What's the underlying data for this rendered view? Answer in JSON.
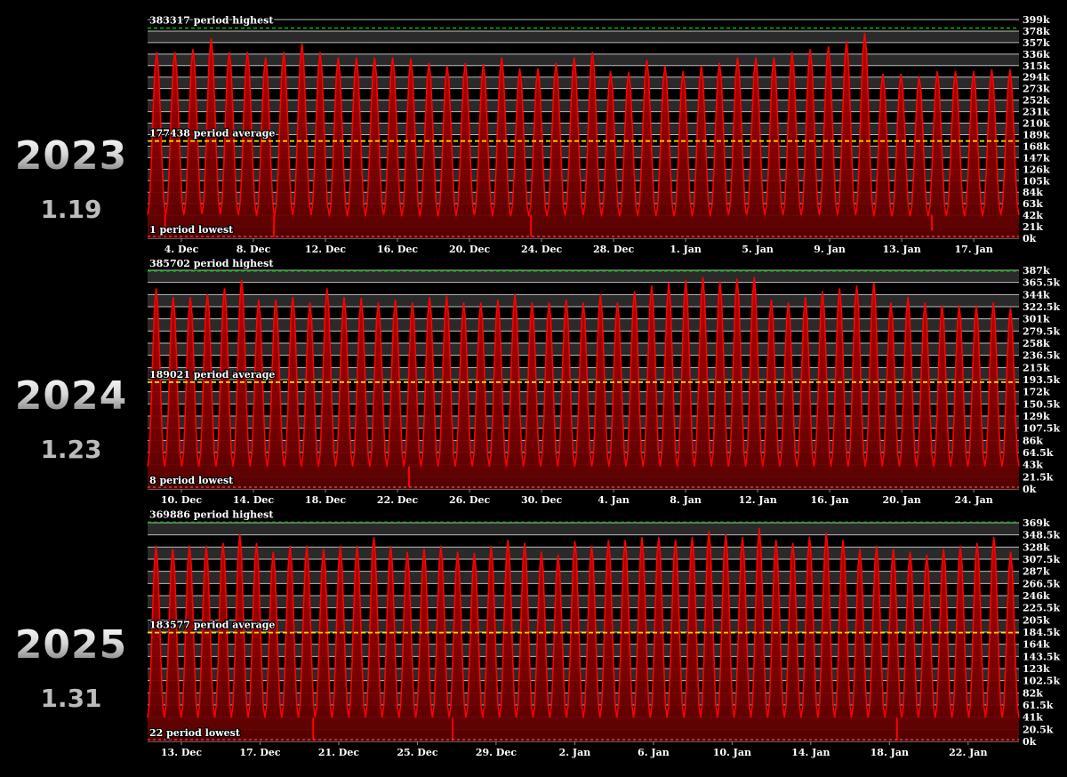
{
  "colors": {
    "background": "#000000",
    "series": "#ff0000",
    "area": "#8a0000",
    "highest_line": "#00c000",
    "average_line": "#ffe000",
    "lowest_line": "#ff6666"
  },
  "panels": [
    {
      "year": "2023",
      "version": "1.19"
    },
    {
      "year": "2024",
      "version": "1.23"
    },
    {
      "year": "2025",
      "version": "1.31"
    }
  ],
  "chart_data": [
    {
      "type": "area",
      "ylim": [
        0,
        399000
      ],
      "yticks": [
        "0k",
        "21k",
        "42k",
        "63k",
        "84k",
        "105k",
        "126k",
        "147k",
        "168k",
        "189k",
        "210k",
        "231k",
        "252k",
        "273k",
        "294k",
        "315k",
        "336k",
        "357k",
        "378k",
        "399k"
      ],
      "xticks": [
        "4. Dec",
        "8. Dec",
        "12. Dec",
        "16. Dec",
        "20. Dec",
        "24. Dec",
        "28. Dec",
        "1. Jan",
        "5. Jan",
        "9. Jan",
        "13. Jan",
        "17. Jan"
      ],
      "annotations": {
        "highest": "383317 period highest",
        "average": "177438 period average",
        "lowest": "1 period lowest"
      },
      "reference": {
        "highest": 383317,
        "average": 177438,
        "lowest": 1
      },
      "peaks": [
        340000,
        340000,
        345000,
        365000,
        340000,
        340000,
        330000,
        340000,
        355000,
        340000,
        330000,
        330000,
        330000,
        330000,
        328000,
        320000,
        315000,
        320000,
        318000,
        330000,
        310000,
        310000,
        320000,
        330000,
        340000,
        305000,
        303000,
        325000,
        315000,
        305000,
        315000,
        320000,
        330000,
        330000,
        330000,
        340000,
        345000,
        350000,
        360000,
        375000,
        300000,
        300000,
        295000,
        305000,
        305000,
        305000,
        308000,
        308000
      ],
      "troughs": [
        43000,
        42000,
        44000,
        45000,
        43000,
        42000,
        40000,
        42000,
        43000,
        42000,
        40000,
        40000,
        42000,
        42000,
        40000,
        40000,
        41000,
        42000,
        42000,
        40000,
        40000,
        40000,
        41000,
        42000,
        42000,
        40000,
        40000,
        42000,
        40000,
        40000,
        40000,
        42000,
        42000,
        42000,
        42000,
        42000,
        42000,
        42000,
        42000,
        42000,
        40000,
        40000,
        40000,
        40000,
        40000,
        40000,
        42000,
        42000
      ],
      "dips": [
        [
          0.02,
          18000
        ],
        [
          0.145,
          2000
        ],
        [
          0.44,
          3000
        ],
        [
          0.9,
          14000
        ]
      ]
    },
    {
      "type": "area",
      "ylim": [
        0,
        387000
      ],
      "yticks": [
        "0k",
        "21.5k",
        "43k",
        "64.5k",
        "86k",
        "107.5k",
        "129k",
        "150.5k",
        "172k",
        "193.5k",
        "215k",
        "236.5k",
        "258k",
        "279.5k",
        "301k",
        "322.5k",
        "344k",
        "365.5k",
        "387k"
      ],
      "xticks": [
        "10. Dec",
        "14. Dec",
        "18. Dec",
        "22. Dec",
        "26. Dec",
        "30. Dec",
        "4. Jan",
        "8. Jan",
        "12. Jan",
        "16. Jan",
        "20. Jan",
        "24. Jan"
      ],
      "annotations": {
        "highest": "385702 period highest",
        "average": "189021 period average",
        "lowest": "8 period lowest"
      },
      "reference": {
        "highest": 385702,
        "average": 189021,
        "lowest": 8
      },
      "peaks": [
        355000,
        340000,
        340000,
        345000,
        355000,
        370000,
        335000,
        335000,
        340000,
        330000,
        355000,
        340000,
        338000,
        330000,
        335000,
        330000,
        340000,
        342000,
        330000,
        330000,
        335000,
        345000,
        330000,
        330000,
        335000,
        330000,
        345000,
        330000,
        350000,
        360000,
        365000,
        370000,
        375000,
        368000,
        372000,
        375000,
        335000,
        330000,
        340000,
        350000,
        355000,
        360000,
        365000,
        330000,
        340000,
        330000,
        325000,
        325000,
        325000,
        330000,
        320000
      ],
      "troughs": [
        40000,
        40000,
        40000,
        40000,
        40000,
        42000,
        40000,
        40000,
        40000,
        40000,
        40000,
        40000,
        40000,
        40000,
        40000,
        40000,
        40000,
        40000,
        40000,
        40000,
        40000,
        40000,
        40000,
        40000,
        40000,
        40000,
        40000,
        40000,
        40000,
        40000,
        40000,
        40000,
        40000,
        40000,
        40000,
        40000,
        40000,
        40000,
        40000,
        40000,
        40000,
        40000,
        40000,
        40000,
        40000,
        40000,
        40000,
        40000,
        40000,
        40000,
        40000
      ],
      "dips": [
        [
          0.3,
          4000
        ]
      ]
    },
    {
      "type": "area",
      "ylim": [
        0,
        369000
      ],
      "yticks": [
        "0k",
        "20.5k",
        "41k",
        "61.5k",
        "82k",
        "102.5k",
        "123k",
        "143.5k",
        "164k",
        "184.5k",
        "205k",
        "225.5k",
        "246k",
        "266.5k",
        "287k",
        "307.5k",
        "328k",
        "348.5k",
        "369k"
      ],
      "xticks": [
        "13. Dec",
        "17. Dec",
        "21. Dec",
        "25. Dec",
        "29. Dec",
        "2. Jan",
        "6. Jan",
        "10. Jan",
        "14. Jan",
        "18. Jan",
        "22. Jan"
      ],
      "annotations": {
        "highest": "369886 period highest",
        "average": "183577 period average",
        "lowest": "22 period lowest"
      },
      "reference": {
        "highest": 369886,
        "average": 183577,
        "lowest": 22
      },
      "peaks": [
        330000,
        325000,
        330000,
        330000,
        335000,
        350000,
        335000,
        320000,
        330000,
        330000,
        325000,
        330000,
        330000,
        345000,
        330000,
        320000,
        325000,
        330000,
        320000,
        318000,
        330000,
        340000,
        335000,
        320000,
        315000,
        338000,
        330000,
        340000,
        340000,
        345000,
        345000,
        340000,
        345000,
        355000,
        350000,
        345000,
        360000,
        340000,
        335000,
        345000,
        352000,
        340000,
        325000,
        330000,
        325000,
        320000,
        315000,
        325000,
        330000,
        335000,
        345000,
        320000
      ],
      "troughs": [
        40000,
        40000,
        40000,
        40000,
        40000,
        40000,
        40000,
        40000,
        40000,
        40000,
        40000,
        40000,
        40000,
        40000,
        40000,
        40000,
        40000,
        40000,
        40000,
        40000,
        40000,
        40000,
        40000,
        40000,
        40000,
        40000,
        40000,
        40000,
        40000,
        40000,
        40000,
        40000,
        40000,
        40000,
        40000,
        40000,
        40000,
        40000,
        40000,
        40000,
        40000,
        40000,
        40000,
        40000,
        40000,
        40000,
        40000,
        40000,
        40000,
        40000,
        40000,
        40000
      ],
      "dips": [
        [
          0.19,
          3000
        ],
        [
          0.35,
          2000
        ],
        [
          0.86,
          2000
        ]
      ]
    }
  ]
}
